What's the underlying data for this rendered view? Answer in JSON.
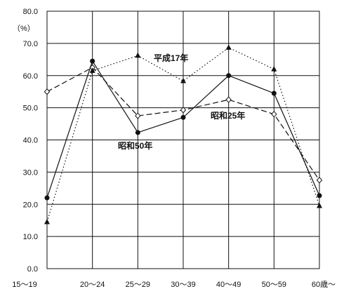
{
  "chart_data": {
    "type": "line",
    "ylabel": "（%）",
    "ylim": [
      0,
      80
    ],
    "yticks": [
      "0.0",
      "10.0",
      "20.0",
      "30.0",
      "40.0",
      "50.0",
      "60.0",
      "70.0",
      "80.0"
    ],
    "categories": [
      "15～19",
      "20～24",
      "25～29",
      "30～39",
      "40～49",
      "50～59",
      "60歳～"
    ],
    "grid": true,
    "series": [
      {
        "name": "昭和25年",
        "values": [
          55.0,
          62.5,
          47.5,
          49.3,
          52.5,
          48.0,
          27.5
        ],
        "color": "#111111",
        "line": "dashed",
        "marker": "open-diamond"
      },
      {
        "name": "昭和50年",
        "values": [
          22.0,
          64.5,
          42.3,
          47.0,
          60.0,
          54.5,
          22.7
        ],
        "color": "#111111",
        "line": "solid",
        "marker": "filled-circle"
      },
      {
        "name": "平成17年",
        "values": [
          14.5,
          61.5,
          66.2,
          58.3,
          68.7,
          62.0,
          19.5
        ],
        "color": "#111111",
        "line": "dotted",
        "marker": "filled-triangle"
      }
    ],
    "annotations": [
      "平成17年",
      "昭和25年",
      "昭和50年"
    ]
  }
}
